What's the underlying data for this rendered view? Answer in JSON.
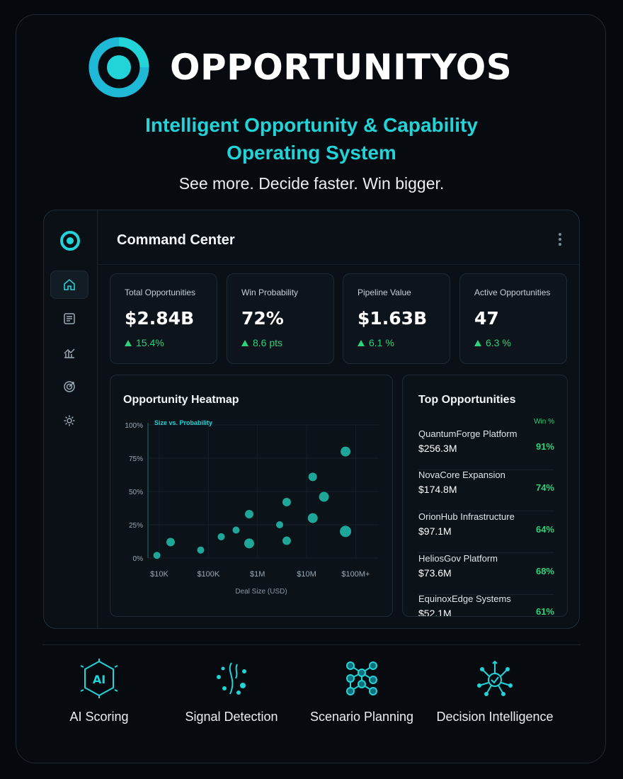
{
  "brand": {
    "name": "OPPORTUNITYOS",
    "accent": "#22d3d8"
  },
  "hero": {
    "tagline_line1": "Intelligent Opportunity & Capability",
    "tagline_line2": "Operating System",
    "subtitle": "See more. Decide faster. Win bigger."
  },
  "sidebar": {
    "items": [
      {
        "icon": "home-icon",
        "active": true
      },
      {
        "icon": "list-icon",
        "active": false
      },
      {
        "icon": "chart-icon",
        "active": false
      },
      {
        "icon": "target-icon",
        "active": false
      },
      {
        "icon": "gear-icon",
        "active": false
      }
    ]
  },
  "header": {
    "title": "Command Center"
  },
  "kpis": [
    {
      "label": "Total Opportunities",
      "value": "$2.84B",
      "delta": "15.4%"
    },
    {
      "label": "Win Probability",
      "value": "72%",
      "delta": "8.6 pts"
    },
    {
      "label": "Pipeline Value",
      "value": "$1.63B",
      "delta": "6.1 %"
    },
    {
      "label": "Active Opportunities",
      "value": "47",
      "delta": "6.3 %"
    }
  ],
  "heatmap": {
    "title": "Opportunity Heatmap"
  },
  "chart_data": {
    "type": "scatter",
    "legend": "Size vs. Probability",
    "xlabel": "Deal Size (USD)",
    "ylabel": "",
    "x_ticks": [
      "$10K",
      "$100K",
      "$1M",
      "$10M",
      "$100M+"
    ],
    "y_ticks": [
      "0%",
      "25%",
      "50%",
      "75%",
      "100%"
    ],
    "x_scale": "log",
    "xlim": [
      10000,
      100000000
    ],
    "ylim": [
      0,
      100
    ],
    "grid": true,
    "points": [
      {
        "x": 15000,
        "y": 2,
        "size": 5
      },
      {
        "x": 28000,
        "y": 12,
        "size": 6
      },
      {
        "x": 110000,
        "y": 6,
        "size": 5
      },
      {
        "x": 280000,
        "y": 16,
        "size": 5
      },
      {
        "x": 550000,
        "y": 21,
        "size": 5
      },
      {
        "x": 1000000,
        "y": 33,
        "size": 6
      },
      {
        "x": 1000000,
        "y": 11,
        "size": 7
      },
      {
        "x": 4000000,
        "y": 25,
        "size": 5
      },
      {
        "x": 5500000,
        "y": 42,
        "size": 6
      },
      {
        "x": 5500000,
        "y": 13,
        "size": 6
      },
      {
        "x": 18000000,
        "y": 61,
        "size": 6
      },
      {
        "x": 18000000,
        "y": 30,
        "size": 7
      },
      {
        "x": 30000000,
        "y": 46,
        "size": 7
      },
      {
        "x": 80000000,
        "y": 80,
        "size": 7
      },
      {
        "x": 80000000,
        "y": 20,
        "size": 8
      }
    ],
    "color": "#22c1b0"
  },
  "top_opportunities": {
    "title": "Top Opportunities",
    "win_header": "Win %",
    "items": [
      {
        "name": "QuantumForge Platform",
        "value": "$256.3M",
        "win": "91%"
      },
      {
        "name": "NovaCore Expansion",
        "value": "$174.8M",
        "win": "74%"
      },
      {
        "name": "OrionHub Infrastructure",
        "value": "$97.1M",
        "win": "64%"
      },
      {
        "name": "HeliosGov Platform",
        "value": "$73.6M",
        "win": "68%"
      },
      {
        "name": "EquinoxEdge Systems",
        "value": "$52.1M",
        "win": "61%"
      }
    ]
  },
  "features": [
    {
      "icon": "ai-chip-icon",
      "label": "AI Scoring"
    },
    {
      "icon": "signal-icon",
      "label": "Signal Detection"
    },
    {
      "icon": "network-icon",
      "label": "Scenario Planning"
    },
    {
      "icon": "decision-icon",
      "label": "Decision Intelligence"
    }
  ]
}
